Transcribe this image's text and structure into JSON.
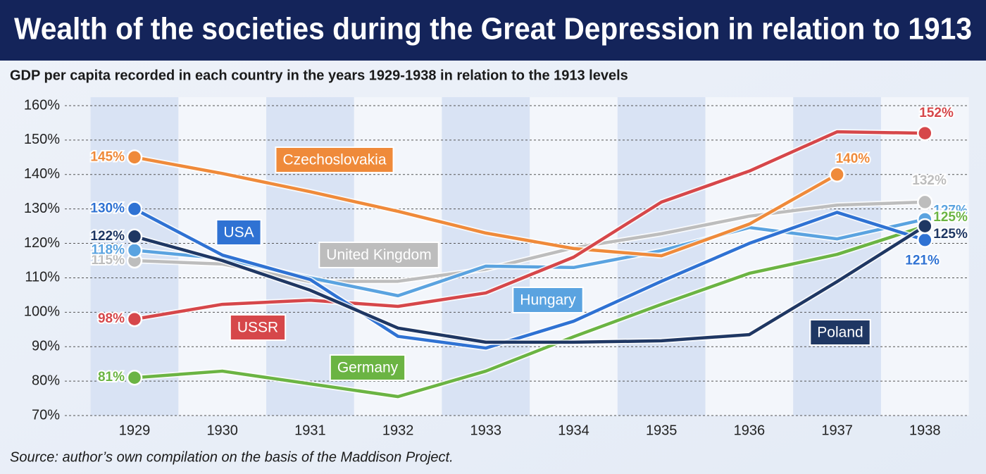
{
  "chart_data": {
    "type": "line",
    "title": "Wealth of the societies during the Great Depression in relation to 1913",
    "subtitle": "GDP per capita recorded in each country in the years 1929-1938 in relation to the 1913 levels",
    "source": "Source: author’s own compilation on the basis of the Maddison Project.",
    "categories": [
      "1929",
      "1930",
      "1931",
      "1932",
      "1933",
      "1934",
      "1935",
      "1936",
      "1937",
      "1938"
    ],
    "ylim": [
      70,
      160
    ],
    "yticks": [
      {
        "value": 70,
        "label": "70%"
      },
      {
        "value": 80,
        "label": "80%"
      },
      {
        "value": 90,
        "label": "90%"
      },
      {
        "value": 100,
        "label": "100%"
      },
      {
        "value": 110,
        "label": "110%"
      },
      {
        "value": 120,
        "label": "120%"
      },
      {
        "value": 130,
        "label": "130%"
      },
      {
        "value": 140,
        "label": "140%"
      },
      {
        "value": 150,
        "label": "150%"
      },
      {
        "value": 160,
        "label": "160%"
      }
    ],
    "grid": true,
    "series": [
      {
        "name": "United Kingdom",
        "color": "#bdbdbd",
        "values": [
          115,
          114,
          108.9,
          109,
          112.5,
          118.7,
          122.8,
          127.9,
          131.1,
          132
        ],
        "value_labels": [
          "115%",
          null,
          null,
          null,
          null,
          null,
          null,
          null,
          null,
          "132%"
        ]
      },
      {
        "name": "Hungary",
        "color": "#5aa3e0",
        "values": [
          118,
          115.6,
          110,
          104.8,
          113.4,
          113,
          117.9,
          124.6,
          121.3,
          127
        ],
        "value_labels": [
          "118%",
          null,
          null,
          null,
          null,
          null,
          null,
          null,
          null,
          "127%"
        ]
      },
      {
        "name": "Czechoslovakia",
        "color": "#ef8a3a",
        "values": [
          145,
          140.3,
          135,
          129.3,
          123,
          118.5,
          116.4,
          125.6,
          140,
          null
        ],
        "value_labels": [
          "145%",
          null,
          null,
          null,
          null,
          null,
          null,
          null,
          "140%",
          null
        ]
      },
      {
        "name": "USSR",
        "color": "#d6474a",
        "values": [
          98,
          102.3,
          103.5,
          101.7,
          105.6,
          116,
          132,
          141,
          152.4,
          152
        ],
        "value_labels": [
          "98%",
          null,
          null,
          null,
          null,
          null,
          null,
          null,
          null,
          "152%"
        ]
      },
      {
        "name": "Germany",
        "color": "#6bb443",
        "values": [
          81,
          82.9,
          79.2,
          75.5,
          82.9,
          92.9,
          102.3,
          111.3,
          116.8,
          125
        ],
        "value_labels": [
          "81%",
          null,
          null,
          null,
          null,
          null,
          null,
          null,
          null,
          "125%"
        ]
      },
      {
        "name": "USA",
        "color": "#2f72d3",
        "values": [
          130,
          116.6,
          109.5,
          93,
          89.6,
          97.4,
          109,
          120,
          129,
          121
        ],
        "value_labels": [
          "130%",
          null,
          null,
          null,
          null,
          null,
          null,
          null,
          null,
          "121%"
        ]
      },
      {
        "name": "Poland",
        "color": "#1f3763",
        "values": [
          122,
          115,
          106.4,
          95.4,
          91.3,
          91.3,
          91.7,
          93.5,
          108.9,
          125
        ],
        "value_labels": [
          "122%",
          null,
          null,
          null,
          null,
          null,
          null,
          null,
          null,
          "125%"
        ]
      }
    ]
  }
}
